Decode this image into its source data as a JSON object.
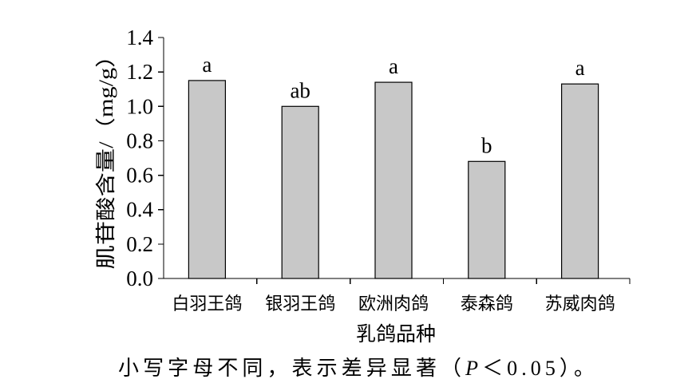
{
  "chart_data": {
    "type": "bar",
    "categories": [
      "白羽王鸽",
      "银羽王鸽",
      "欧洲肉鸽",
      "泰森鸽",
      "苏威肉鸽"
    ],
    "values": [
      1.15,
      1.0,
      1.14,
      0.68,
      1.13
    ],
    "data_labels": [
      "a",
      "ab",
      "a",
      "b",
      "a"
    ],
    "xlabel": "乳鸽品种",
    "ylabel": "肌苷酸含量/（mg/g）",
    "ylim": [
      0,
      1.4
    ],
    "yticks": [
      "0.0",
      "0.2",
      "0.4",
      "0.6",
      "0.8",
      "1.0",
      "1.2",
      "1.4"
    ],
    "grid": false,
    "bar_color": "#c8c8c8",
    "bar_edge_color": "#000000"
  },
  "footnote": {
    "text_before": "小写字母不同，表示差异显著（",
    "italic": "P",
    "text_after": "＜0.05）。"
  }
}
